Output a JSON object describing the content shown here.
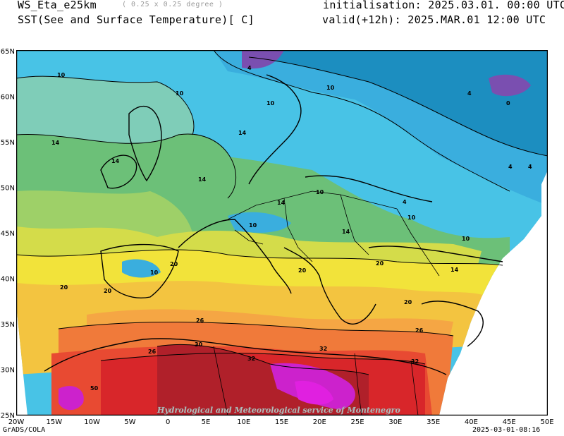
{
  "header": {
    "model": "WS_Eta_e25km",
    "resolution": "( 0.25 x 0.25 degree )",
    "initialisation": "initialisation: 2025.03.01. 00:00 UTC",
    "field": "SST(See and Surface Temperature)[ C]",
    "valid": "valid(+12h): 2025.MAR.01 12:00 UTC"
  },
  "map": {
    "watermark": "Hydrological and Meteorological service of Montenegro",
    "lat_ticks": [
      "65N",
      "60N",
      "55N",
      "50N",
      "45N",
      "40N",
      "35N",
      "30N",
      "25N"
    ],
    "lon_ticks": [
      "20W",
      "15W",
      "10W",
      "5W",
      "0",
      "5E",
      "10E",
      "15E",
      "20E",
      "25E",
      "30E",
      "35E",
      "40E",
      "45E",
      "50E"
    ],
    "contour_labels": [
      "10",
      "10",
      "10",
      "10",
      "14",
      "14",
      "14",
      "14",
      "20",
      "20",
      "20",
      "26",
      "26",
      "30",
      "32",
      "32",
      "50",
      "4",
      "4",
      "0",
      "4",
      "4",
      "4",
      "10",
      "10",
      "10",
      "14",
      "14",
      "20",
      "20",
      "26",
      "32",
      "10",
      "14",
      "20",
      "10"
    ],
    "colors": {
      "c0": "#7a4fb0",
      "c2": "#1c8ec0",
      "c6": "#3aaede",
      "c10": "#48c3e6",
      "c12": "#7fcdb8",
      "c14": "#6cc078",
      "c16": "#9ed068",
      "c18": "#d4dc4a",
      "c20": "#f2e33a",
      "c22": "#f3c440",
      "c24": "#f5a644",
      "c26": "#f07a3a",
      "c28": "#e84a32",
      "c30": "#d8262a",
      "c32": "#b0202a",
      "c34": "#cc22cc",
      "c36": "#e020e0"
    }
  },
  "footer": {
    "software": "GrADS/COLA",
    "timestamp": "2025-03-01-08:16"
  }
}
